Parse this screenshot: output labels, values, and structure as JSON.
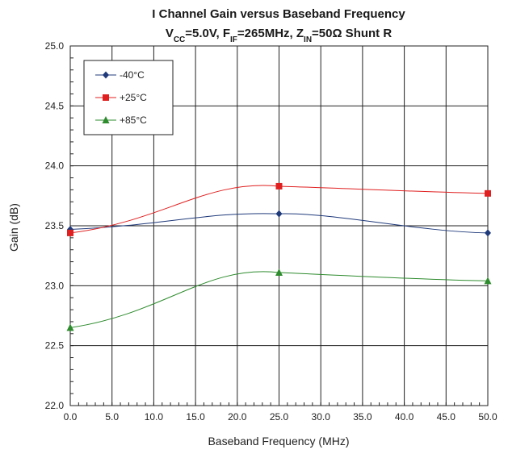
{
  "chart_data": {
    "type": "line",
    "title_line1": "I Channel Gain versus Baseband Frequency",
    "title_line2": {
      "vcc_main": "V",
      "vcc_sub": "CC",
      "vcc_val": "=5.0V, ",
      "fif_main": "F",
      "fif_sub": "IF",
      "fif_val": "=265MHz, ",
      "zin_main": "Z",
      "zin_sub": "IN",
      "zin_val": "=50Ω Shunt R"
    },
    "xlabel": "Baseband Frequency (MHz)",
    "ylabel": "Gain (dB)",
    "xlim": [
      0,
      50
    ],
    "ylim": [
      22.0,
      25.0
    ],
    "x_ticks": [
      0,
      5,
      10,
      15,
      20,
      25,
      30,
      35,
      40,
      45,
      50
    ],
    "x_tick_labels": [
      "0.0",
      "5.0",
      "10.0",
      "15.0",
      "20.0",
      "25.0",
      "30.0",
      "35.0",
      "40.0",
      "45.0",
      "50.0"
    ],
    "y_ticks": [
      22.0,
      22.5,
      23.0,
      23.5,
      24.0,
      24.5,
      25.0
    ],
    "y_tick_labels": [
      "22.0",
      "22.5",
      "23.0",
      "23.5",
      "24.0",
      "24.5",
      "25.0"
    ],
    "grid": true,
    "legend_position": "top-left",
    "series": [
      {
        "name": "-40°C",
        "color": "#1f3a7a",
        "marker": "diamond",
        "x": [
          0,
          25,
          50
        ],
        "y": [
          23.47,
          23.6,
          23.44
        ]
      },
      {
        "name": "+25°C",
        "color": "#e02020",
        "marker": "square",
        "x": [
          0,
          25,
          50
        ],
        "y": [
          23.44,
          23.83,
          23.77
        ]
      },
      {
        "name": "+85°C",
        "color": "#2e8b2e",
        "marker": "triangle",
        "x": [
          0,
          25,
          50
        ],
        "y": [
          22.65,
          23.11,
          23.04
        ]
      }
    ]
  }
}
